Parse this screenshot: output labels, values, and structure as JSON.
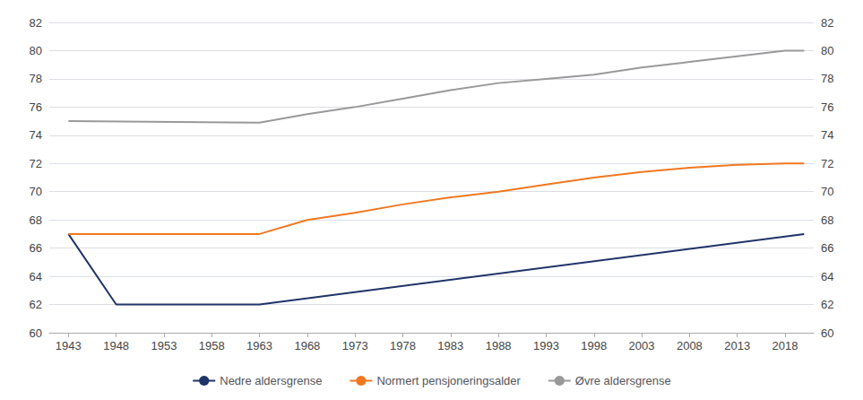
{
  "chart_data": {
    "type": "line",
    "xlim": [
      1941,
      2021
    ],
    "xticks": [
      1943,
      1948,
      1953,
      1958,
      1963,
      1968,
      1973,
      1978,
      1983,
      1988,
      1993,
      1998,
      2003,
      2008,
      2013,
      2018
    ],
    "ylim": [
      60,
      82
    ],
    "yticks": [
      60,
      62,
      64,
      66,
      68,
      70,
      72,
      74,
      76,
      78,
      80,
      82
    ],
    "y2lim": [
      60,
      82
    ],
    "y2ticks": [
      60,
      62,
      64,
      66,
      68,
      70,
      72,
      74,
      76,
      78,
      80,
      82
    ],
    "grid": true,
    "legend": "bottom",
    "series": [
      {
        "name": "Nedre aldersgrense",
        "color": "#1f3368",
        "x": [
          1943,
          1948,
          1963,
          2020
        ],
        "values": [
          67,
          62,
          62,
          67
        ]
      },
      {
        "name": "Normert pensjoneringsalder",
        "color": "#f07820",
        "x": [
          1943,
          1963,
          1968,
          1973,
          1978,
          1983,
          1988,
          1993,
          1998,
          2003,
          2008,
          2013,
          2018,
          2020
        ],
        "values": [
          67,
          67,
          68.0,
          68.5,
          69.1,
          69.6,
          70.0,
          70.5,
          71.0,
          71.4,
          71.7,
          71.9,
          72.0,
          72.0
        ]
      },
      {
        "name": "Øvre aldersgrense",
        "color": "#999999",
        "x": [
          1943,
          1963,
          1968,
          1973,
          1978,
          1983,
          1988,
          1993,
          1998,
          2003,
          2008,
          2013,
          2018,
          2020
        ],
        "values": [
          75,
          74.9,
          75.5,
          76.0,
          76.6,
          77.2,
          77.7,
          78.0,
          78.3,
          78.8,
          79.2,
          79.6,
          80.0,
          80.0
        ]
      }
    ]
  }
}
